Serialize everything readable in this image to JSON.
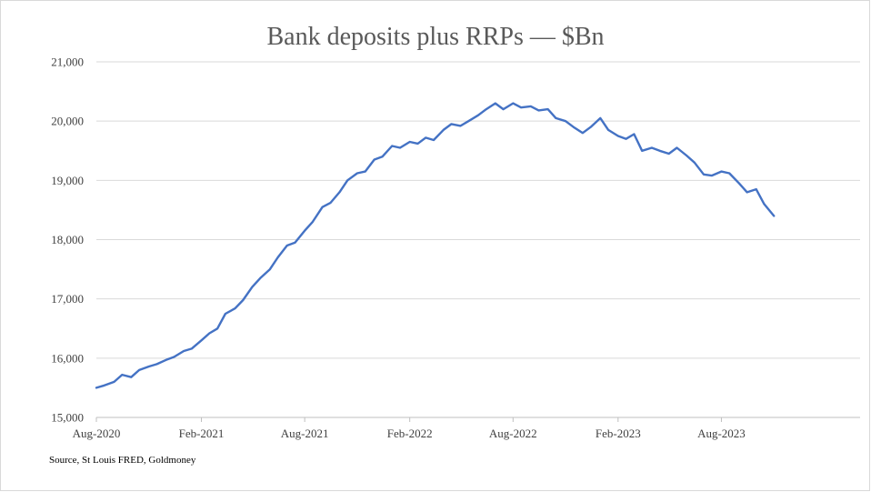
{
  "chart_data": {
    "type": "line",
    "title": "Bank deposits plus RRPs — $Bn",
    "source": "Source, St Louis FRED, Goldmoney",
    "xlabel": "",
    "ylabel": "",
    "ylim": [
      15000,
      21000
    ],
    "xlim": [
      "2020-08-01",
      "2024-03-31"
    ],
    "yticks": [
      15000,
      16000,
      17000,
      18000,
      19000,
      20000,
      21000
    ],
    "ytick_labels": [
      "15,000",
      "16,000",
      "17,000",
      "18,000",
      "19,000",
      "20,000",
      "21,000"
    ],
    "xticks": [
      "2020-08-01",
      "2021-02-01",
      "2021-08-01",
      "2022-02-01",
      "2022-08-01",
      "2023-02-01",
      "2023-08-01"
    ],
    "xtick_labels": [
      "Aug-2020",
      "Feb-2021",
      "Aug-2021",
      "Feb-2022",
      "Aug-2022",
      "Feb-2023",
      "Aug-2023"
    ],
    "grid": "horizontal",
    "line_color": "#4472c4",
    "series": [
      {
        "x": [
          "2020-08-01",
          "2020-08-15",
          "2020-09-01",
          "2020-09-15",
          "2020-10-01",
          "2020-10-15",
          "2020-11-01",
          "2020-11-15",
          "2020-12-01",
          "2020-12-15",
          "2021-01-01",
          "2021-01-15",
          "2021-02-01",
          "2021-02-15",
          "2021-03-01",
          "2021-03-15",
          "2021-04-01",
          "2021-04-15",
          "2021-05-01",
          "2021-05-15",
          "2021-06-01",
          "2021-06-15",
          "2021-07-01",
          "2021-07-15",
          "2021-08-01",
          "2021-08-15",
          "2021-09-01",
          "2021-09-15",
          "2021-10-01",
          "2021-10-15",
          "2021-11-01",
          "2021-11-15",
          "2021-12-01",
          "2021-12-15",
          "2022-01-01",
          "2022-01-15",
          "2022-02-01",
          "2022-02-15",
          "2022-03-01",
          "2022-03-15",
          "2022-04-01",
          "2022-04-15",
          "2022-05-01",
          "2022-05-15",
          "2022-06-01",
          "2022-06-15",
          "2022-07-01",
          "2022-07-15",
          "2022-08-01",
          "2022-08-15",
          "2022-09-01",
          "2022-09-15",
          "2022-10-01",
          "2022-10-15",
          "2022-11-01",
          "2022-11-15",
          "2022-12-01",
          "2022-12-15",
          "2023-01-01",
          "2023-01-15",
          "2023-02-01",
          "2023-02-15",
          "2023-03-01",
          "2023-03-15",
          "2023-04-01",
          "2023-04-15",
          "2023-05-01",
          "2023-05-15",
          "2023-06-01",
          "2023-06-15",
          "2023-07-01",
          "2023-07-15",
          "2023-08-01",
          "2023-08-15",
          "2023-09-01",
          "2023-09-15",
          "2023-10-01",
          "2023-10-15",
          "2023-11-01"
        ],
        "y": [
          15500,
          15540,
          15600,
          15720,
          15680,
          15800,
          15860,
          15900,
          15970,
          16020,
          16120,
          16160,
          16300,
          16420,
          16500,
          16750,
          16840,
          16980,
          17200,
          17350,
          17500,
          17700,
          17900,
          17950,
          18150,
          18300,
          18550,
          18620,
          18800,
          19000,
          19120,
          19150,
          19350,
          19400,
          19580,
          19550,
          19650,
          19620,
          19720,
          19680,
          19850,
          19950,
          19920,
          20000,
          20100,
          20200,
          20300,
          20200,
          20300,
          20230,
          20250,
          20180,
          20200,
          20050,
          20000,
          19900,
          19800,
          19900,
          20050,
          19850,
          19750,
          19700,
          19780,
          19500,
          19550,
          19500,
          19450,
          19550,
          19420,
          19300,
          19100,
          19080,
          19150,
          19120,
          18950,
          18800,
          18850,
          18600,
          18400
        ]
      }
    ]
  }
}
